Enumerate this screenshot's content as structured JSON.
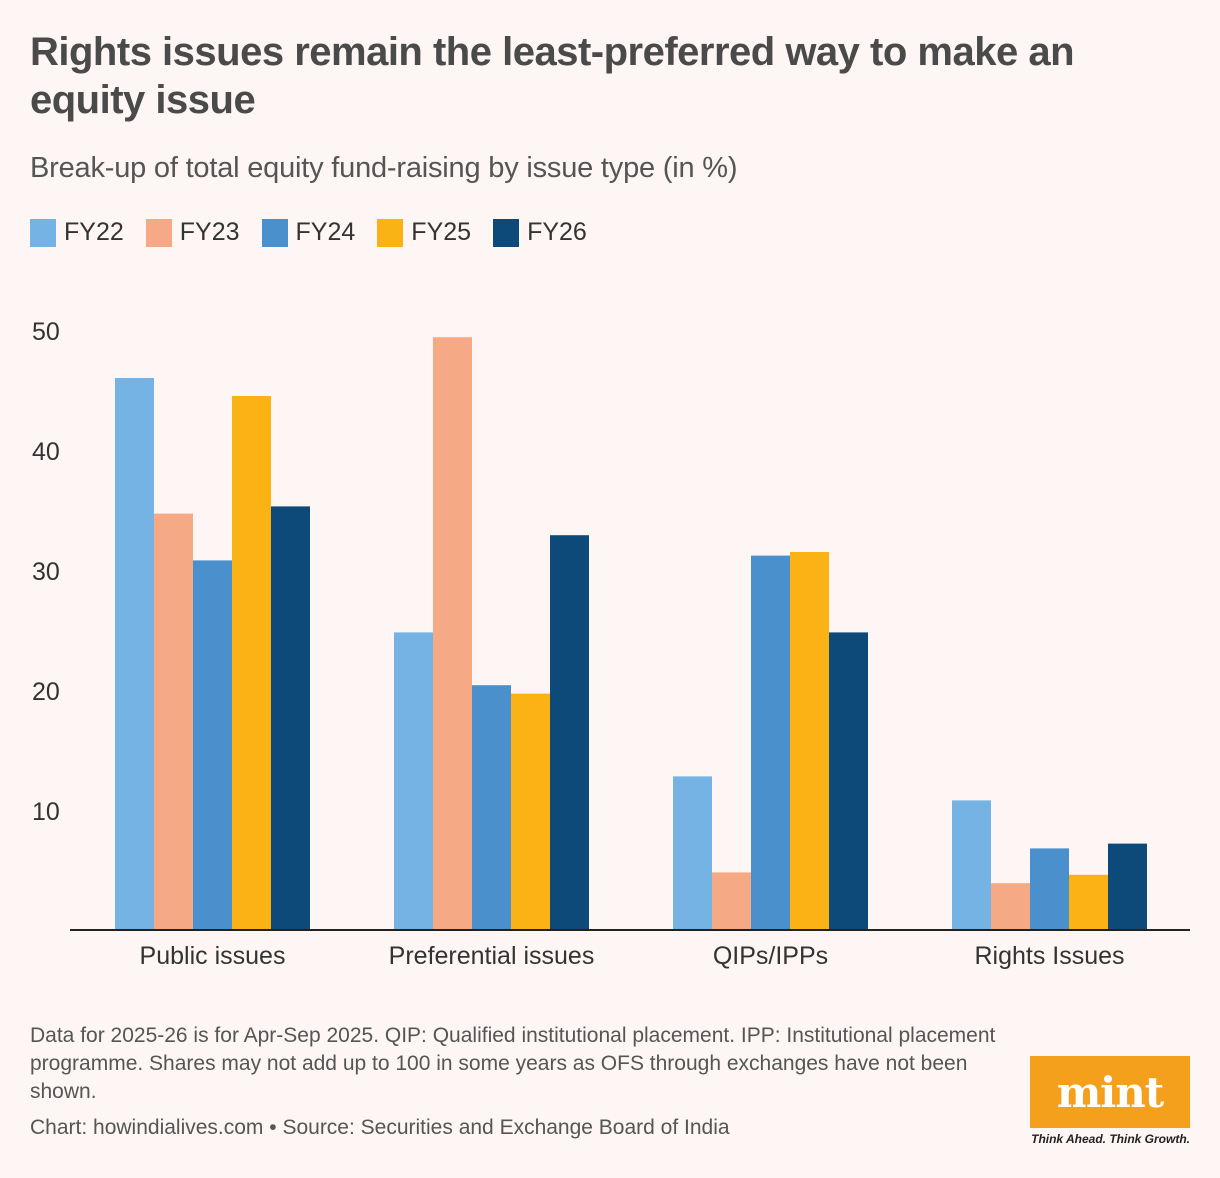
{
  "header": {
    "title": "Rights issues remain the least-preferred way to make an equity issue",
    "subtitle": "Break-up of total equity fund-raising by issue type (in %)"
  },
  "colors": {
    "FY22": "#74b3e3",
    "FY23": "#f6a985",
    "FY24": "#4a90cd",
    "FY25": "#fbb215",
    "FY26": "#0d4a7a"
  },
  "footer": {
    "note": "Data for 2025-26 is for Apr-Sep 2025. QIP: Qualified institutional placement. IPP: Institutional placement programme. Shares may not add up to 100 in some years as OFS through exchanges have not been shown.",
    "source": "Chart: howindialives.com • Source: Securities and Exchange Board of India"
  },
  "logo": {
    "text": "mint",
    "tagline": "Think Ahead. Think Growth."
  },
  "chart_data": {
    "type": "bar",
    "categories": [
      "Public issues",
      "Preferential issues",
      "QIPs/IPPs",
      "Rights Issues"
    ],
    "series": [
      {
        "name": "FY22",
        "values": [
          46.0,
          24.8,
          12.8,
          10.8
        ]
      },
      {
        "name": "FY23",
        "values": [
          34.7,
          49.4,
          4.8,
          3.9
        ]
      },
      {
        "name": "FY24",
        "values": [
          30.8,
          20.4,
          31.2,
          6.8
        ]
      },
      {
        "name": "FY25",
        "values": [
          44.5,
          19.7,
          31.5,
          4.6
        ]
      },
      {
        "name": "FY26",
        "values": [
          35.3,
          32.9,
          24.8,
          7.2
        ]
      }
    ],
    "yticks": [
      10,
      20,
      30,
      40,
      50
    ],
    "ylim": [
      0,
      50
    ],
    "title": "Rights issues remain the least-preferred way to make an equity issue",
    "xlabel": "",
    "ylabel": "",
    "legend": "top-left",
    "grid": false
  }
}
